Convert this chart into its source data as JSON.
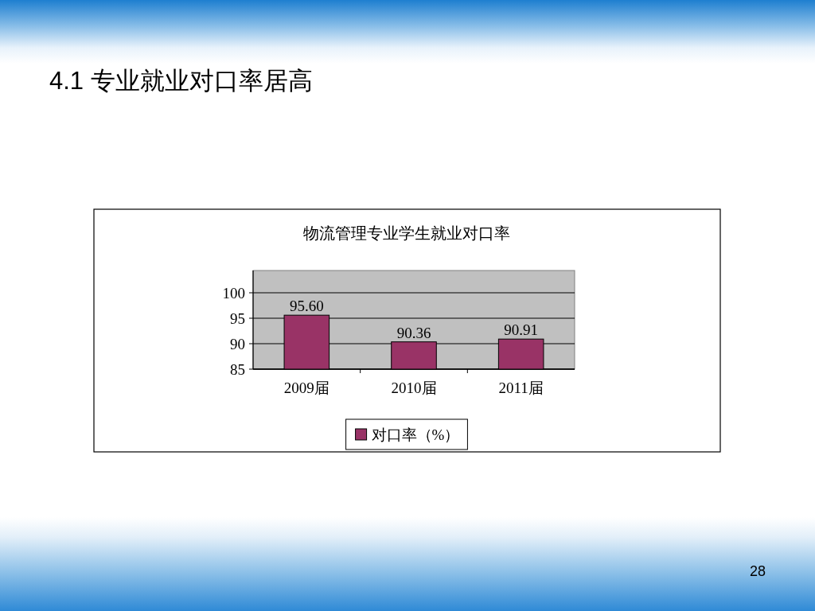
{
  "chart_data": {
    "type": "bar",
    "title": "4.1 专业就业对口率居高",
    "subtitle": "物流管理专业学生就业对口率",
    "categories": [
      "2009届",
      "2010届",
      "2011届"
    ],
    "series": [
      {
        "name": "对口率（%）",
        "color": "#993366",
        "values": [
          95.6,
          90.36,
          90.91
        ],
        "value_labels": [
          "95.60",
          "90.36",
          "90.91"
        ]
      }
    ],
    "ylim": [
      85,
      100
    ],
    "yticks": [
      85,
      90,
      95,
      100
    ],
    "grid": "y",
    "legend": "bottom",
    "annotations": [
      "28"
    ]
  }
}
